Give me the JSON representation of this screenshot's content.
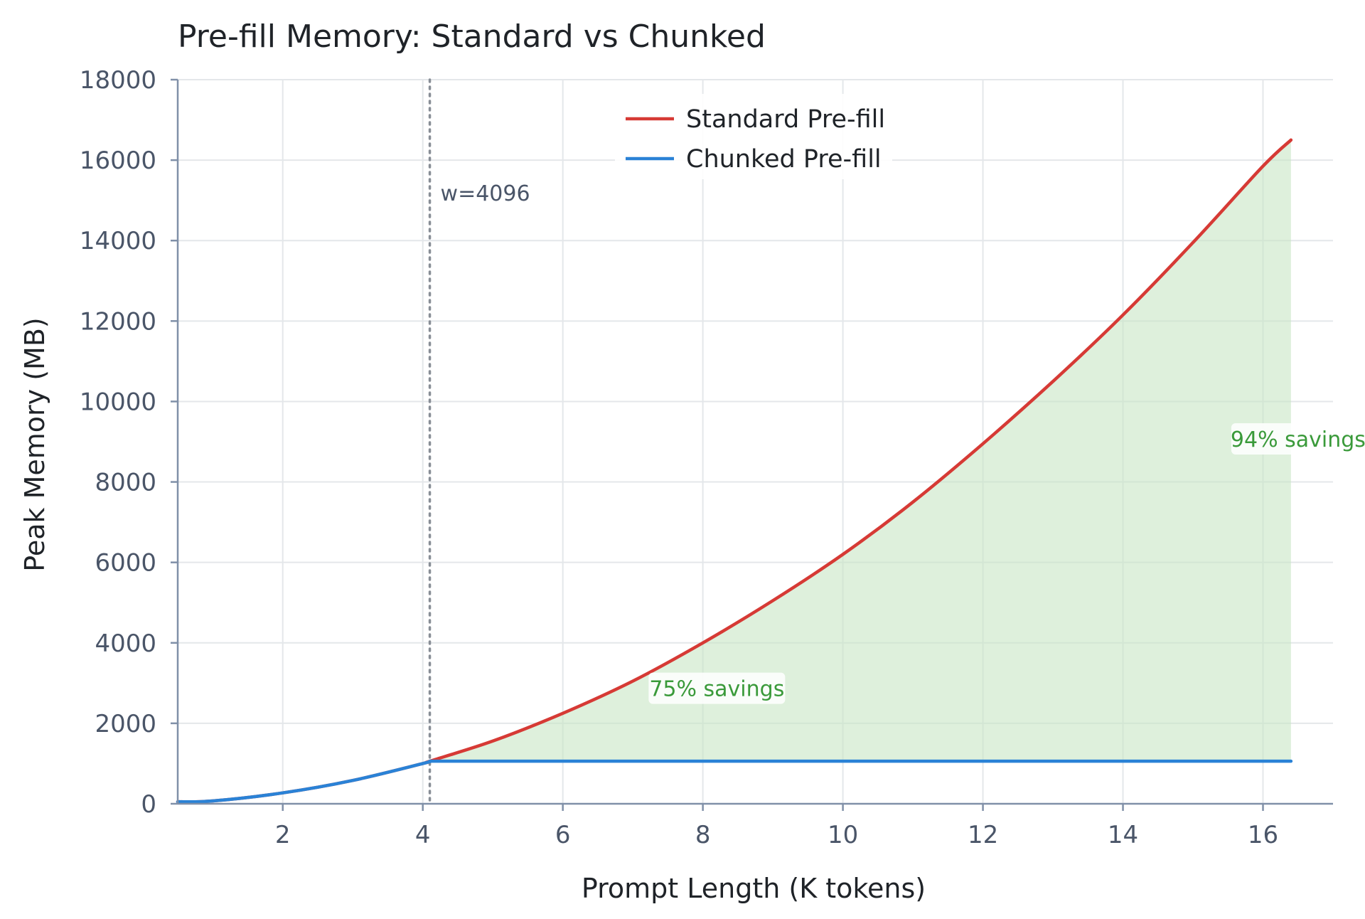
{
  "chart_data": {
    "type": "line",
    "title": "Pre-fill Memory: Standard vs Chunked",
    "xlabel": "Prompt Length (K tokens)",
    "ylabel": "Peak Memory (MB)",
    "xlim": [
      0.5,
      17.0
    ],
    "ylim": [
      0,
      18000
    ],
    "x_ticks": [
      2,
      4,
      6,
      8,
      10,
      12,
      14,
      16
    ],
    "y_ticks": [
      0,
      2000,
      4000,
      6000,
      8000,
      10000,
      12000,
      14000,
      16000,
      18000
    ],
    "grid": true,
    "legend_position": "top-center",
    "series": [
      {
        "name": "Standard Pre-fill",
        "color": "#d63a35",
        "x": [
          0.5,
          1,
          2,
          3,
          4,
          4.1,
          5,
          6,
          7,
          8,
          9,
          10,
          11,
          12,
          13,
          14,
          15,
          16,
          16.4
        ],
        "values": [
          50,
          70,
          270,
          580,
          1000,
          1060,
          1560,
          2250,
          3050,
          4000,
          5050,
          6200,
          7500,
          8950,
          10500,
          12150,
          13950,
          15850,
          16500
        ]
      },
      {
        "name": "Chunked Pre-fill",
        "color": "#2a82d6",
        "x": [
          0.5,
          1,
          2,
          3,
          4,
          4.1,
          16.4
        ],
        "values": [
          50,
          70,
          270,
          580,
          1000,
          1060,
          1060
        ]
      }
    ],
    "fill_between": {
      "from_series": "Chunked Pre-fill",
      "to_series": "Standard Pre-fill",
      "x_start": 4.1,
      "x_end": 16.4,
      "color": "#c8e6c5"
    },
    "vline": {
      "x": 4.1,
      "label": "w=4096",
      "color": "#888e96"
    },
    "annotations": [
      {
        "text": "75% savings",
        "x": 8.2,
        "y": 2800,
        "color": "#3a9a3a"
      },
      {
        "text": "94% savings",
        "x": 16.4,
        "y": 9000,
        "color": "#3a9a3a"
      }
    ]
  }
}
